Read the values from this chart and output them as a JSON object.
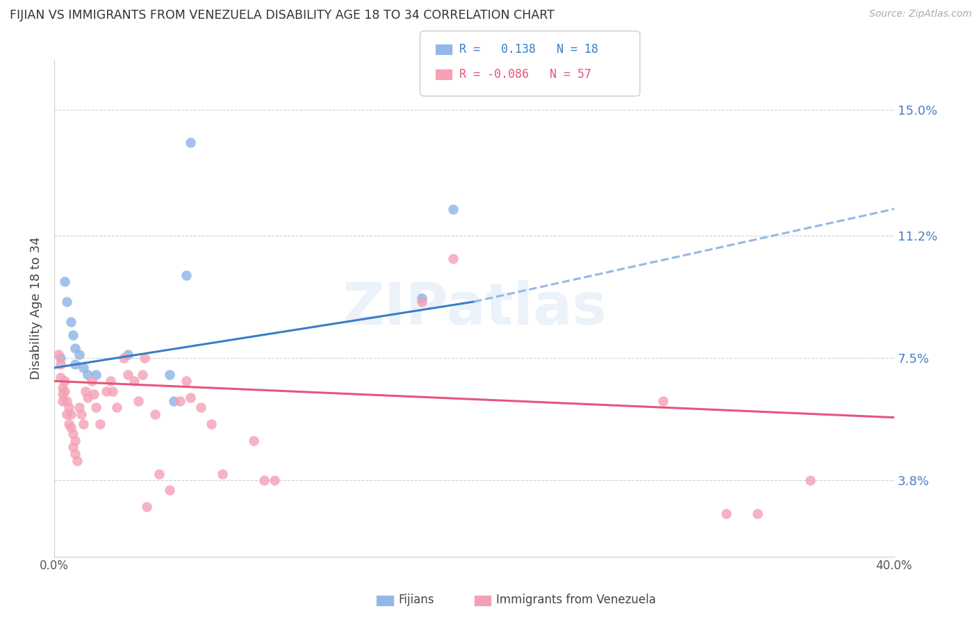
{
  "title": "FIJIAN VS IMMIGRANTS FROM VENEZUELA DISABILITY AGE 18 TO 34 CORRELATION CHART",
  "source": "Source: ZipAtlas.com",
  "ylabel": "Disability Age 18 to 34",
  "ytick_labels": [
    "3.8%",
    "7.5%",
    "11.2%",
    "15.0%"
  ],
  "ytick_values": [
    0.038,
    0.075,
    0.112,
    0.15
  ],
  "xlim": [
    0.0,
    0.4
  ],
  "ylim": [
    0.015,
    0.165
  ],
  "legend_R_fijian": "0.138",
  "legend_N_fijian": "18",
  "legend_R_venezuela": "-0.086",
  "legend_N_venezuela": "57",
  "fijian_color": "#93b8e8",
  "venezuela_color": "#f4a0b5",
  "fijian_line_color": "#3a7dc9",
  "venezuela_line_color": "#e8547a",
  "fijian_dashed_color": "#93b8e8",
  "fijian_scatter": [
    [
      0.003,
      0.075
    ],
    [
      0.005,
      0.098
    ],
    [
      0.006,
      0.092
    ],
    [
      0.008,
      0.086
    ],
    [
      0.009,
      0.082
    ],
    [
      0.01,
      0.078
    ],
    [
      0.01,
      0.073
    ],
    [
      0.012,
      0.076
    ],
    [
      0.014,
      0.072
    ],
    [
      0.016,
      0.07
    ],
    [
      0.02,
      0.07
    ],
    [
      0.055,
      0.07
    ],
    [
      0.057,
      0.062
    ],
    [
      0.063,
      0.1
    ],
    [
      0.065,
      0.14
    ],
    [
      0.175,
      0.093
    ],
    [
      0.19,
      0.12
    ],
    [
      0.035,
      0.076
    ]
  ],
  "venezuela_scatter": [
    [
      0.002,
      0.076
    ],
    [
      0.003,
      0.073
    ],
    [
      0.003,
      0.069
    ],
    [
      0.004,
      0.066
    ],
    [
      0.004,
      0.064
    ],
    [
      0.004,
      0.062
    ],
    [
      0.005,
      0.068
    ],
    [
      0.005,
      0.065
    ],
    [
      0.006,
      0.062
    ],
    [
      0.006,
      0.058
    ],
    [
      0.007,
      0.055
    ],
    [
      0.007,
      0.06
    ],
    [
      0.008,
      0.058
    ],
    [
      0.008,
      0.054
    ],
    [
      0.009,
      0.052
    ],
    [
      0.009,
      0.048
    ],
    [
      0.01,
      0.05
    ],
    [
      0.01,
      0.046
    ],
    [
      0.011,
      0.044
    ],
    [
      0.012,
      0.06
    ],
    [
      0.013,
      0.058
    ],
    [
      0.014,
      0.055
    ],
    [
      0.015,
      0.065
    ],
    [
      0.016,
      0.063
    ],
    [
      0.018,
      0.068
    ],
    [
      0.019,
      0.064
    ],
    [
      0.02,
      0.06
    ],
    [
      0.022,
      0.055
    ],
    [
      0.025,
      0.065
    ],
    [
      0.027,
      0.068
    ],
    [
      0.028,
      0.065
    ],
    [
      0.03,
      0.06
    ],
    [
      0.033,
      0.075
    ],
    [
      0.035,
      0.07
    ],
    [
      0.038,
      0.068
    ],
    [
      0.04,
      0.062
    ],
    [
      0.042,
      0.07
    ],
    [
      0.043,
      0.075
    ],
    [
      0.044,
      0.03
    ],
    [
      0.048,
      0.058
    ],
    [
      0.05,
      0.04
    ],
    [
      0.055,
      0.035
    ],
    [
      0.06,
      0.062
    ],
    [
      0.063,
      0.068
    ],
    [
      0.065,
      0.063
    ],
    [
      0.07,
      0.06
    ],
    [
      0.075,
      0.055
    ],
    [
      0.095,
      0.05
    ],
    [
      0.1,
      0.038
    ],
    [
      0.105,
      0.038
    ],
    [
      0.175,
      0.092
    ],
    [
      0.19,
      0.105
    ],
    [
      0.29,
      0.062
    ],
    [
      0.32,
      0.028
    ],
    [
      0.335,
      0.028
    ],
    [
      0.36,
      0.038
    ],
    [
      0.08,
      0.04
    ]
  ],
  "background_color": "#ffffff",
  "grid_color": "#d0d0d0"
}
